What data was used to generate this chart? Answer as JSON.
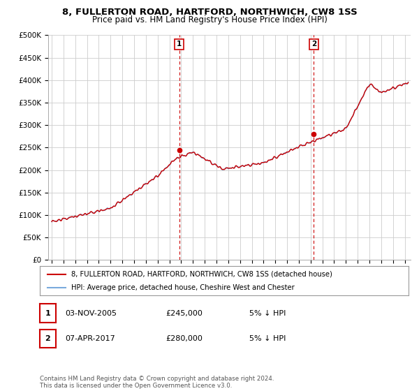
{
  "title": "8, FULLERTON ROAD, HARTFORD, NORTHWICH, CW8 1SS",
  "subtitle": "Price paid vs. HM Land Registry's House Price Index (HPI)",
  "ylabel_ticks": [
    "£0",
    "£50K",
    "£100K",
    "£150K",
    "£200K",
    "£250K",
    "£300K",
    "£350K",
    "£400K",
    "£450K",
    "£500K"
  ],
  "ytick_values": [
    0,
    50000,
    100000,
    150000,
    200000,
    250000,
    300000,
    350000,
    400000,
    450000,
    500000
  ],
  "ylim": [
    0,
    500000
  ],
  "xlim_start": 1994.7,
  "xlim_end": 2025.5,
  "purchase1_date": 2005.84,
  "purchase1_price": 245000,
  "purchase2_date": 2017.27,
  "purchase2_price": 280000,
  "legend_line1": "8, FULLERTON ROAD, HARTFORD, NORTHWICH, CW8 1SS (detached house)",
  "legend_line2": "HPI: Average price, detached house, Cheshire West and Chester",
  "annotation1_label": "1",
  "annotation1_date": "03-NOV-2005",
  "annotation1_price": "£245,000",
  "annotation1_note": "5% ↓ HPI",
  "annotation2_label": "2",
  "annotation2_date": "07-APR-2017",
  "annotation2_price": "£280,000",
  "annotation2_note": "5% ↓ HPI",
  "footnote": "Contains HM Land Registry data © Crown copyright and database right 2024.\nThis data is licensed under the Open Government Licence v3.0.",
  "bg_color": "#ffffff",
  "grid_color": "#cccccc",
  "hpi_color": "#7aaadd",
  "price_color": "#cc0000",
  "dashed_color": "#cc0000",
  "title_fontsize": 9.5,
  "subtitle_fontsize": 8.5,
  "tick_fontsize": 7.5
}
